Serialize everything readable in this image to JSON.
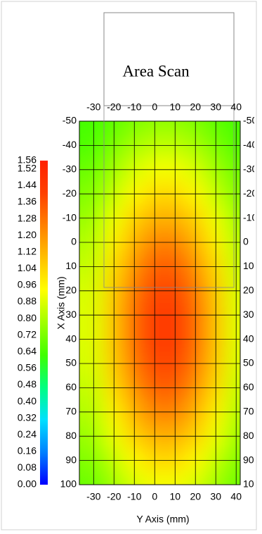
{
  "chart_data": {
    "type": "heatmap",
    "title": "Area Scan",
    "xlabel": "Y Axis (mm)",
    "ylabel": "X Axis (mm)",
    "x": [
      -30,
      -20,
      -10,
      0,
      10,
      20,
      30,
      40
    ],
    "y": [
      -50,
      -40,
      -30,
      -20,
      -10,
      0,
      10,
      20,
      30,
      40,
      50,
      60,
      70,
      80,
      90,
      100
    ],
    "z": [
      [
        0.63,
        0.67,
        0.72,
        0.75,
        0.75,
        0.72,
        0.67,
        0.63
      ],
      [
        0.65,
        0.72,
        0.79,
        0.83,
        0.83,
        0.79,
        0.72,
        0.65
      ],
      [
        0.69,
        0.78,
        0.87,
        0.92,
        0.92,
        0.87,
        0.78,
        0.69
      ],
      [
        0.73,
        0.84,
        0.95,
        1.03,
        1.03,
        0.95,
        0.84,
        0.73
      ],
      [
        0.77,
        0.91,
        1.05,
        1.13,
        1.13,
        1.05,
        0.91,
        0.77
      ],
      [
        0.81,
        0.97,
        1.13,
        1.24,
        1.24,
        1.13,
        0.97,
        0.81
      ],
      [
        0.84,
        1.03,
        1.21,
        1.33,
        1.33,
        1.21,
        1.03,
        0.84
      ],
      [
        0.87,
        1.07,
        1.27,
        1.39,
        1.39,
        1.27,
        1.07,
        0.87
      ],
      [
        0.88,
        1.09,
        1.3,
        1.43,
        1.43,
        1.3,
        1.09,
        0.88
      ],
      [
        0.88,
        1.09,
        1.3,
        1.43,
        1.43,
        1.3,
        1.09,
        0.88
      ],
      [
        0.87,
        1.07,
        1.27,
        1.39,
        1.39,
        1.27,
        1.07,
        0.87
      ],
      [
        0.84,
        1.03,
        1.21,
        1.33,
        1.33,
        1.21,
        1.03,
        0.84
      ],
      [
        0.81,
        0.97,
        1.13,
        1.24,
        1.24,
        1.13,
        0.97,
        0.81
      ],
      [
        0.77,
        0.91,
        1.05,
        1.13,
        1.13,
        1.05,
        0.91,
        0.77
      ],
      [
        0.73,
        0.84,
        0.95,
        1.03,
        1.03,
        0.95,
        0.84,
        0.73
      ],
      [
        0.69,
        0.78,
        0.87,
        0.92,
        0.92,
        0.87,
        0.78,
        0.69
      ]
    ],
    "xlim": [
      -37,
      42
    ],
    "ylim": [
      -50,
      100
    ],
    "xticks": [
      -30,
      -20,
      -10,
      0,
      10,
      20,
      30,
      40
    ],
    "yticks": [
      -50,
      -40,
      -30,
      -20,
      -10,
      0,
      10,
      20,
      30,
      40,
      50,
      60,
      70,
      80,
      90,
      100
    ],
    "grid": true,
    "colorbar": {
      "zlim": [
        0,
        1.56
      ],
      "ticks": [
        {
          "value": 0,
          "label": "0.00"
        },
        0.08,
        0.16,
        0.24,
        0.32,
        {
          "value": 0.4,
          "label": "0.40"
        },
        0.48,
        0.56,
        0.64,
        0.72,
        {
          "value": 0.8,
          "label": "0.80"
        },
        0.88,
        0.96,
        1.04,
        1.12,
        {
          "value": 1.2,
          "label": "1.20"
        },
        1.28,
        1.36,
        1.44,
        1.52,
        1.56
      ],
      "colors": [
        "#0000ff",
        "#0080ff",
        "#00e0ff",
        "#00ff80",
        "#40ff00",
        "#a0ff00",
        "#ffff00",
        "#ffc000",
        "#ff8000",
        "#ff4000",
        "#ff2000"
      ]
    }
  }
}
